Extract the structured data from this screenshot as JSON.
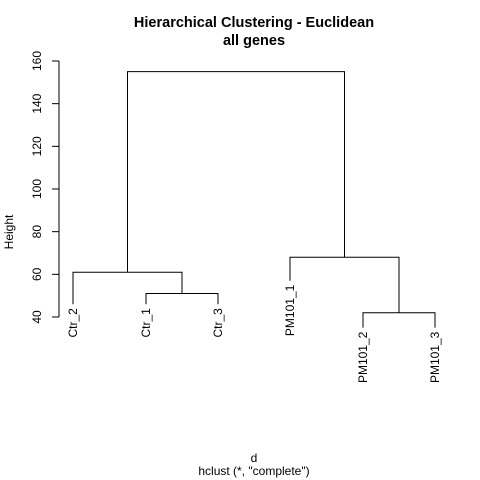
{
  "chart_data": {
    "type": "dendrogram",
    "title": "Hierarchical Clustering - Euclidean",
    "subtitle": "all genes",
    "ylabel": "Height",
    "xlabel": "d",
    "sublabel": "hclust (*, \"complete\")",
    "ylim": [
      40,
      160
    ],
    "y_ticks": [
      40,
      60,
      80,
      100,
      120,
      140,
      160
    ],
    "grid": false,
    "leaves": [
      "Ctr_2",
      "Ctr_1",
      "Ctr_3",
      "PM101_1",
      "PM101_2",
      "PM101_3"
    ],
    "merges": [
      {
        "left": "Ctr_1",
        "right": "Ctr_3",
        "height": 51
      },
      {
        "left": "PM101_2",
        "right": "PM101_3",
        "height": 42
      },
      {
        "left": "Ctr_2",
        "right": "(Ctr_1,Ctr_3)",
        "height": 61
      },
      {
        "left": "PM101_1",
        "right": "(PM101_2,PM101_3)",
        "height": 68
      },
      {
        "left": "(Ctr_2,Ctr_1,Ctr_3)",
        "right": "(PM101_1,PM101_2,PM101_3)",
        "height": 155
      }
    ],
    "leaf_heights": [
      {
        "name": "Ctr_2",
        "value": 46
      },
      {
        "name": "Ctr_1",
        "value": 46
      },
      {
        "name": "Ctr_3",
        "value": 46
      },
      {
        "name": "PM101_1",
        "value": 57
      },
      {
        "name": "PM101_2",
        "value": 35
      },
      {
        "name": "PM101_3",
        "value": 35
      }
    ],
    "line_color": "#000000"
  }
}
